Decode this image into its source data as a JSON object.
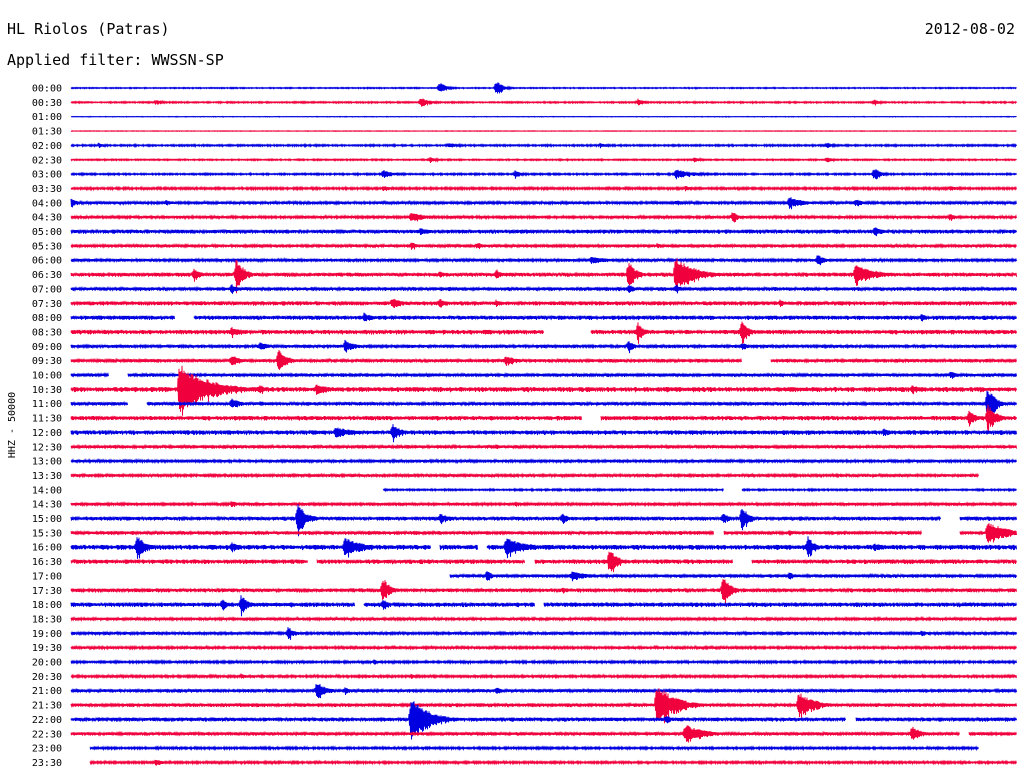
{
  "header": {
    "station": "HL Riolos (Patras)",
    "date": "2012-08-02",
    "filter": "Applied filter: WWSSN-SP"
  },
  "chart_data": {
    "type": "line",
    "ylabel": "HHZ - 50000",
    "colors": {
      "blue": "#0000e0",
      "red": "#f0003c"
    },
    "rows": [
      {
        "label": "00:00",
        "color": "blue",
        "noise": 0.4,
        "events": [
          [
            0.39,
            6,
            1.2
          ],
          [
            0.45,
            8,
            1.0
          ]
        ],
        "gaps": []
      },
      {
        "label": "00:30",
        "color": "red",
        "noise": 0.5,
        "events": [
          [
            0.09,
            3,
            1.0
          ],
          [
            0.37,
            5,
            1.5
          ],
          [
            0.6,
            4,
            1.0
          ],
          [
            0.85,
            3,
            1.0
          ]
        ],
        "gaps": []
      },
      {
        "label": "01:00",
        "color": "blue",
        "noise": 0.2,
        "events": [],
        "gaps": []
      },
      {
        "label": "01:30",
        "color": "red",
        "noise": 0.2,
        "events": [],
        "gaps": []
      },
      {
        "label": "02:00",
        "color": "blue",
        "noise": 0.6,
        "events": [
          [
            0.03,
            3,
            0.8
          ],
          [
            0.4,
            3,
            1.5
          ],
          [
            0.56,
            3,
            1.0
          ],
          [
            0.8,
            3,
            1.0
          ]
        ],
        "gaps": []
      },
      {
        "label": "02:30",
        "color": "red",
        "noise": 0.5,
        "events": [
          [
            0.38,
            3,
            1.0
          ],
          [
            0.66,
            3,
            1.0
          ],
          [
            0.8,
            3,
            1.0
          ]
        ],
        "gaps": []
      },
      {
        "label": "03:00",
        "color": "blue",
        "noise": 0.6,
        "events": [
          [
            0.33,
            5,
            1.5
          ],
          [
            0.47,
            4,
            1.0
          ],
          [
            0.64,
            5,
            3.0
          ],
          [
            0.85,
            7,
            1.0
          ]
        ],
        "gaps": []
      },
      {
        "label": "03:30",
        "color": "red",
        "noise": 0.8,
        "events": [
          [
            0.33,
            3,
            1.5
          ],
          [
            0.65,
            3,
            1.5
          ],
          [
            0.93,
            3,
            2.0
          ]
        ],
        "gaps": []
      },
      {
        "label": "04:00",
        "color": "blue",
        "noise": 1.0,
        "events": [
          [
            0.0,
            5,
            1.0
          ],
          [
            0.1,
            3,
            1.5
          ],
          [
            0.64,
            3,
            1.5
          ],
          [
            0.76,
            7,
            2.0
          ],
          [
            0.83,
            4,
            1.5
          ]
        ],
        "gaps": []
      },
      {
        "label": "04:30",
        "color": "red",
        "noise": 0.9,
        "events": [
          [
            0.36,
            6,
            2.0
          ],
          [
            0.7,
            6,
            1.0
          ],
          [
            0.93,
            4,
            1.0
          ]
        ],
        "gaps": []
      },
      {
        "label": "05:00",
        "color": "blue",
        "noise": 1.4,
        "events": [
          [
            0.37,
            4,
            1.5
          ],
          [
            0.85,
            5,
            1.5
          ]
        ],
        "gaps": []
      },
      {
        "label": "05:30",
        "color": "red",
        "noise": 1.1,
        "events": [
          [
            0.36,
            4,
            1.5
          ],
          [
            0.43,
            4,
            1.0
          ],
          [
            0.62,
            3,
            1.0
          ]
        ],
        "gaps": []
      },
      {
        "label": "06:00",
        "color": "blue",
        "noise": 1.0,
        "events": [
          [
            0.55,
            4,
            3.0
          ],
          [
            0.79,
            6,
            1.2
          ]
        ],
        "gaps": []
      },
      {
        "label": "06:30",
        "color": "red",
        "noise": 1.4,
        "events": [
          [
            0.13,
            7,
            1.2
          ],
          [
            0.175,
            18,
            1.2
          ],
          [
            0.59,
            14,
            1.2
          ],
          [
            0.64,
            18,
            3.0
          ],
          [
            0.83,
            10,
            3.5
          ],
          [
            0.39,
            4,
            1.0
          ],
          [
            0.45,
            6,
            0.8
          ]
        ],
        "gaps": []
      },
      {
        "label": "07:00",
        "color": "blue",
        "noise": 1.3,
        "events": [
          [
            0.17,
            5,
            1.0
          ],
          [
            0.59,
            5,
            1.0
          ],
          [
            0.64,
            5,
            1.0
          ]
        ],
        "gaps": []
      },
      {
        "label": "07:30",
        "color": "red",
        "noise": 1.5,
        "events": [
          [
            0.34,
            6,
            1.5
          ],
          [
            0.39,
            5,
            1.5
          ],
          [
            0.45,
            4,
            1.0
          ],
          [
            0.75,
            4,
            1.0
          ]
        ],
        "gaps": []
      },
      {
        "label": "08:00",
        "color": "blue",
        "noise": 1.5,
        "events": [
          [
            0.03,
            3,
            1.0
          ],
          [
            0.31,
            5,
            1.5
          ],
          [
            0.9,
            4,
            1.0
          ]
        ],
        "gaps": [
          [
            0.11,
            0.13
          ]
        ]
      },
      {
        "label": "08:30",
        "color": "red",
        "noise": 1.6,
        "events": [
          [
            0.17,
            5,
            2.0
          ],
          [
            0.6,
            10,
            1.0
          ],
          [
            0.71,
            12,
            1.0
          ]
        ],
        "gaps": [
          [
            0.5,
            0.55
          ]
        ]
      },
      {
        "label": "09:00",
        "color": "blue",
        "noise": 1.1,
        "events": [
          [
            0.2,
            5,
            1.5
          ],
          [
            0.29,
            7,
            1.5
          ],
          [
            0.59,
            6,
            1.0
          ],
          [
            0.71,
            4,
            1.0
          ]
        ],
        "gaps": []
      },
      {
        "label": "09:30",
        "color": "red",
        "noise": 1.2,
        "events": [
          [
            0.17,
            6,
            1.5
          ],
          [
            0.22,
            14,
            1.2
          ],
          [
            0.46,
            5,
            2.0
          ]
        ],
        "gaps": [
          [
            0.71,
            0.74
          ]
        ]
      },
      {
        "label": "10:00",
        "color": "blue",
        "noise": 1.2,
        "events": [
          [
            0.93,
            4,
            1.5
          ]
        ],
        "gaps": [
          [
            0.04,
            0.06
          ]
        ]
      },
      {
        "label": "10:30",
        "color": "red",
        "noise": 1.8,
        "events": [
          [
            0.115,
            28,
            4.5
          ],
          [
            0.2,
            5,
            1.0
          ],
          [
            0.26,
            6,
            2.0
          ],
          [
            0.89,
            5,
            1.5
          ]
        ],
        "gaps": []
      },
      {
        "label": "11:00",
        "color": "blue",
        "noise": 1.2,
        "events": [
          [
            0.17,
            6,
            1.5
          ],
          [
            0.2,
            3,
            1.0
          ],
          [
            0.97,
            18,
            1.2
          ]
        ],
        "gaps": [
          [
            0.06,
            0.08
          ]
        ]
      },
      {
        "label": "11:30",
        "color": "red",
        "noise": 1.6,
        "events": [
          [
            0.95,
            8,
            1.2
          ],
          [
            0.97,
            14,
            1.5
          ]
        ],
        "gaps": [
          [
            0.54,
            0.56
          ]
        ]
      },
      {
        "label": "12:00",
        "color": "blue",
        "noise": 1.6,
        "events": [
          [
            0.28,
            6,
            3.0
          ],
          [
            0.34,
            9,
            1.5
          ],
          [
            0.86,
            4,
            1.0
          ]
        ],
        "gaps": []
      },
      {
        "label": "12:30",
        "color": "red",
        "noise": 1.2,
        "events": [
          [
            0.45,
            3,
            1.0
          ]
        ],
        "gaps": []
      },
      {
        "label": "13:00",
        "color": "blue",
        "noise": 1.0,
        "events": [],
        "gaps": []
      },
      {
        "label": "13:30",
        "color": "red",
        "noise": 1.0,
        "events": [],
        "gaps": [
          [
            0.96,
            1.0
          ]
        ]
      },
      {
        "label": "14:00",
        "color": "blue",
        "noise": 0.6,
        "events": [],
        "gaps": [
          [
            0.0,
            0.33
          ],
          [
            0.69,
            0.71
          ]
        ]
      },
      {
        "label": "14:30",
        "color": "red",
        "noise": 1.0,
        "events": [
          [
            0.17,
            4,
            1.0
          ],
          [
            0.47,
            3,
            1.0
          ]
        ],
        "gaps": []
      },
      {
        "label": "15:00",
        "color": "blue",
        "noise": 1.4,
        "events": [
          [
            0.24,
            15,
            1.5
          ],
          [
            0.39,
            5,
            2.0
          ],
          [
            0.52,
            6,
            1.0
          ],
          [
            0.69,
            6,
            1.0
          ],
          [
            0.71,
            14,
            1.0
          ]
        ],
        "gaps": [
          [
            0.92,
            0.94
          ]
        ]
      },
      {
        "label": "15:30",
        "color": "red",
        "noise": 1.3,
        "events": [
          [
            0.76,
            3,
            1.0
          ],
          [
            0.97,
            12,
            3.0
          ]
        ],
        "gaps": [
          [
            0.68,
            0.69
          ],
          [
            0.9,
            0.94
          ]
        ]
      },
      {
        "label": "16:00",
        "color": "blue",
        "noise": 1.8,
        "events": [
          [
            0.07,
            12,
            1.5
          ],
          [
            0.17,
            6,
            1.0
          ],
          [
            0.29,
            10,
            3.0
          ],
          [
            0.46,
            10,
            3.5
          ],
          [
            0.78,
            12,
            1.0
          ],
          [
            0.85,
            4,
            2.0
          ]
        ],
        "gaps": [
          [
            0.38,
            0.39
          ],
          [
            0.43,
            0.44
          ]
        ]
      },
      {
        "label": "16:30",
        "color": "red",
        "noise": 1.6,
        "events": [
          [
            0.57,
            15,
            1.2
          ]
        ],
        "gaps": [
          [
            0.25,
            0.26
          ],
          [
            0.48,
            0.49
          ],
          [
            0.7,
            0.72
          ]
        ]
      },
      {
        "label": "17:00",
        "color": "blue",
        "noise": 1.2,
        "events": [
          [
            0.44,
            6,
            1.0
          ],
          [
            0.53,
            5,
            3.0
          ],
          [
            0.76,
            4,
            1.0
          ]
        ],
        "gaps": [
          [
            0.0,
            0.4
          ]
        ]
      },
      {
        "label": "17:30",
        "color": "red",
        "noise": 1.4,
        "events": [
          [
            0.33,
            14,
            1.2
          ],
          [
            0.52,
            4,
            1.0
          ],
          [
            0.69,
            15,
            1.2
          ]
        ],
        "gaps": []
      },
      {
        "label": "18:00",
        "color": "blue",
        "noise": 1.6,
        "events": [
          [
            0.16,
            6,
            1.0
          ],
          [
            0.18,
            10,
            1.2
          ],
          [
            0.33,
            6,
            1.0
          ]
        ],
        "gaps": [
          [
            0.3,
            0.31
          ],
          [
            0.49,
            0.5
          ]
        ]
      },
      {
        "label": "18:30",
        "color": "red",
        "noise": 1.0,
        "events": [],
        "gaps": []
      },
      {
        "label": "19:00",
        "color": "blue",
        "noise": 1.0,
        "events": [
          [
            0.23,
            7,
            1.0
          ],
          [
            0.9,
            3,
            1.5
          ]
        ],
        "gaps": []
      },
      {
        "label": "19:30",
        "color": "red",
        "noise": 0.9,
        "events": [],
        "gaps": []
      },
      {
        "label": "20:00",
        "color": "blue",
        "noise": 0.8,
        "events": [
          [
            0.32,
            3,
            1.0
          ]
        ],
        "gaps": []
      },
      {
        "label": "20:30",
        "color": "red",
        "noise": 0.9,
        "events": [
          [
            0.18,
            3,
            1.0
          ],
          [
            0.36,
            3,
            1.0
          ]
        ],
        "gaps": []
      },
      {
        "label": "21:00",
        "color": "blue",
        "noise": 1.2,
        "events": [
          [
            0.26,
            10,
            1.5
          ],
          [
            0.29,
            4,
            1.0
          ],
          [
            0.45,
            4,
            1.0
          ]
        ],
        "gaps": []
      },
      {
        "label": "21:30",
        "color": "red",
        "noise": 1.3,
        "events": [
          [
            0.62,
            22,
            3.0
          ],
          [
            0.77,
            14,
            2.5
          ]
        ],
        "gaps": []
      },
      {
        "label": "22:00",
        "color": "blue",
        "noise": 1.4,
        "events": [
          [
            0.36,
            22,
            3.0
          ],
          [
            0.63,
            5,
            1.0
          ]
        ],
        "gaps": [
          [
            0.82,
            0.83
          ]
        ]
      },
      {
        "label": "22:30",
        "color": "red",
        "noise": 1.2,
        "events": [
          [
            0.65,
            10,
            3.0
          ],
          [
            0.89,
            8,
            1.5
          ]
        ],
        "gaps": [
          [
            0.94,
            0.95
          ]
        ]
      },
      {
        "label": "23:00",
        "color": "blue",
        "noise": 0.8,
        "events": [],
        "gaps": [
          [
            0.0,
            0.02
          ],
          [
            0.96,
            1.0
          ]
        ]
      },
      {
        "label": "23:30",
        "color": "red",
        "noise": 0.8,
        "events": [
          [
            0.09,
            4,
            1.0
          ]
        ],
        "gaps": [
          [
            0.0,
            0.02
          ]
        ]
      }
    ]
  }
}
